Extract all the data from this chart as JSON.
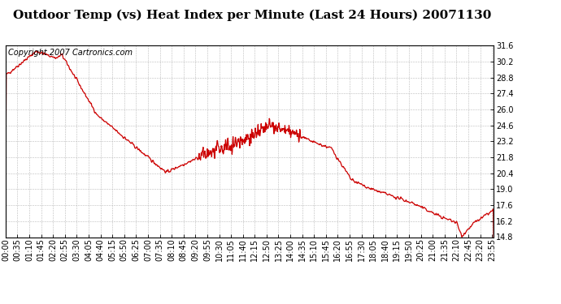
{
  "title": "Outdoor Temp (vs) Heat Index per Minute (Last 24 Hours) 20071130",
  "copyright_text": "Copyright 2007 Cartronics.com",
  "line_color": "#cc0000",
  "bg_color": "#ffffff",
  "grid_color": "#bbbbbb",
  "ylim": [
    14.8,
    31.6
  ],
  "yticks": [
    14.8,
    16.2,
    17.6,
    19.0,
    20.4,
    21.8,
    23.2,
    24.6,
    26.0,
    27.4,
    28.8,
    30.2,
    31.6
  ],
  "title_fontsize": 11,
  "copyright_fontsize": 7,
  "tick_fontsize": 7,
  "linewidth": 0.9
}
